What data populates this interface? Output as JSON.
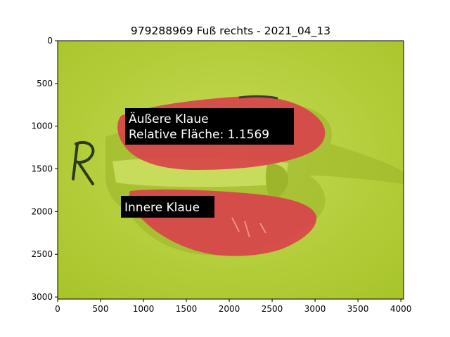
{
  "title": "979288969 Fuß rechts - 2021_04_13",
  "image_content": {
    "background_color": "#b8d23c",
    "marking_letter": "R",
    "claw_overlay_color": "#d9404a"
  },
  "annotations": [
    {
      "lines": [
        "Äußere Klaue",
        "Relative Fläche: 1.1569"
      ],
      "box_color": "#000000",
      "text_color": "#ffffff"
    },
    {
      "lines": [
        "Innere Klaue"
      ],
      "box_color": "#000000",
      "text_color": "#ffffff"
    }
  ],
  "axes": {
    "xlim": [
      0,
      4032
    ],
    "ylim": [
      3024,
      0
    ],
    "xticks": [
      {
        "value": 0,
        "label": "0"
      },
      {
        "value": 500,
        "label": "500"
      },
      {
        "value": 1000,
        "label": "1000"
      },
      {
        "value": 1500,
        "label": "1500"
      },
      {
        "value": 2000,
        "label": "2000"
      },
      {
        "value": 2500,
        "label": "2500"
      },
      {
        "value": 3000,
        "label": "3000"
      },
      {
        "value": 3500,
        "label": "3500"
      },
      {
        "value": 4000,
        "label": "4000"
      }
    ],
    "yticks": [
      {
        "value": 0,
        "label": "0"
      },
      {
        "value": 500,
        "label": "500"
      },
      {
        "value": 1000,
        "label": "1000"
      },
      {
        "value": 1500,
        "label": "1500"
      },
      {
        "value": 2000,
        "label": "2000"
      },
      {
        "value": 2500,
        "label": "2500"
      },
      {
        "value": 3000,
        "label": "3000"
      }
    ]
  }
}
